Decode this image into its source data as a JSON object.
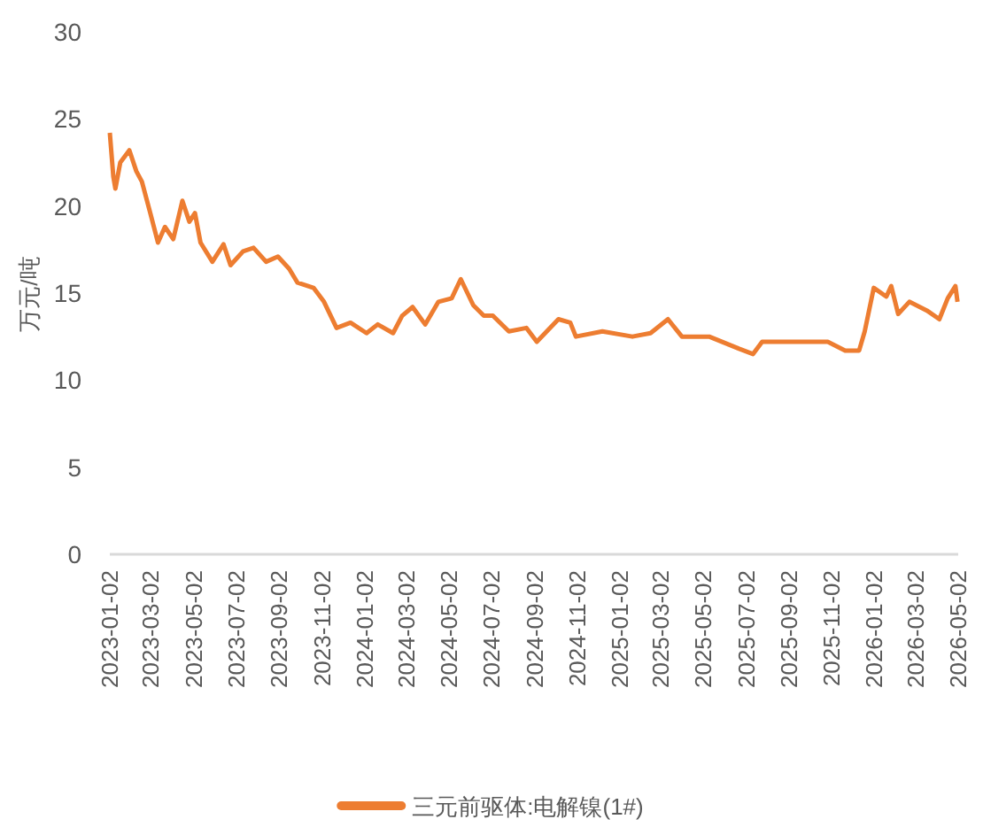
{
  "chart_data": {
    "type": "line",
    "ylabel": "万元/吨",
    "legend": "bottom",
    "grid": false,
    "xlim": [
      "2023-01-02",
      "2026-05-02"
    ],
    "xticks": [
      "2023-01-02",
      "2023-03-02",
      "2023-05-02",
      "2023-07-02",
      "2023-09-02",
      "2023-11-02",
      "2024-01-02",
      "2024-03-02",
      "2024-05-02",
      "2024-07-02",
      "2024-09-02",
      "2024-11-02",
      "2025-01-02",
      "2025-03-02",
      "2025-05-02",
      "2025-07-02",
      "2025-09-02",
      "2025-11-02",
      "2026-01-02",
      "2026-03-02",
      "2026-05-02"
    ],
    "ylim": [
      0,
      30
    ],
    "yticks": [
      0,
      5,
      10,
      15,
      20,
      25,
      30
    ],
    "x": [
      "2023-01-02",
      "2023-01-07",
      "2023-01-10",
      "2023-01-17",
      "2023-01-30",
      "2023-02-09",
      "2023-02-17",
      "2023-03-01",
      "2023-03-12",
      "2023-03-22",
      "2023-04-03",
      "2023-04-16",
      "2023-04-26",
      "2023-05-04",
      "2023-05-12",
      "2023-05-29",
      "2023-06-14",
      "2023-06-24",
      "2023-07-12",
      "2023-07-27",
      "2023-08-14",
      "2023-08-31",
      "2023-09-16",
      "2023-09-28",
      "2023-10-21",
      "2023-11-05",
      "2023-11-23",
      "2023-12-13",
      "2024-01-05",
      "2024-01-21",
      "2024-02-12",
      "2024-02-25",
      "2024-03-11",
      "2024-03-29",
      "2024-04-17",
      "2024-05-06",
      "2024-05-19",
      "2024-06-06",
      "2024-06-21",
      "2024-07-04",
      "2024-07-27",
      "2024-08-21",
      "2024-09-05",
      "2024-10-06",
      "2024-10-23",
      "2024-10-31",
      "2024-12-08",
      "2025-01-20",
      "2025-02-15",
      "2025-03-12",
      "2025-04-01",
      "2025-05-10",
      "2025-06-22",
      "2025-07-12",
      "2025-07-25",
      "2025-09-14",
      "2025-10-27",
      "2025-11-21",
      "2025-12-11",
      "2025-12-19",
      "2026-01-01",
      "2026-01-19",
      "2026-01-26",
      "2026-02-05",
      "2026-02-21",
      "2026-03-18",
      "2026-04-05",
      "2026-04-17",
      "2026-04-28",
      "2026-05-01"
    ],
    "series": [
      {
        "name": "三元前驱体:电解镍(1#)",
        "color": "#ed7d31",
        "marker": "none",
        "line_style": "solid",
        "values": [
          24.2,
          21.7,
          21.0,
          22.5,
          23.2,
          22.0,
          21.4,
          19.6,
          17.9,
          18.8,
          18.1,
          20.3,
          19.1,
          19.6,
          17.9,
          16.8,
          17.8,
          16.6,
          17.4,
          17.6,
          16.8,
          17.1,
          16.4,
          15.6,
          15.3,
          14.5,
          13.0,
          13.3,
          12.7,
          13.2,
          12.7,
          13.7,
          14.2,
          13.2,
          14.5,
          14.7,
          15.8,
          14.3,
          13.7,
          13.7,
          12.8,
          13.0,
          12.2,
          13.5,
          13.3,
          12.5,
          12.8,
          12.5,
          12.7,
          13.5,
          12.5,
          12.5,
          11.8,
          11.5,
          12.2,
          12.2,
          12.2,
          11.7,
          11.7,
          12.8,
          15.3,
          14.8,
          15.4,
          13.8,
          14.5,
          14.0,
          13.5,
          14.7,
          15.4,
          14.5
        ]
      }
    ]
  }
}
